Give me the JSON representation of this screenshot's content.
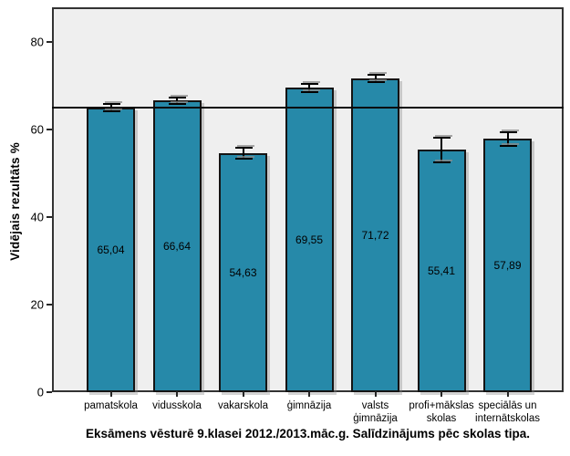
{
  "chart_data": {
    "type": "bar",
    "title": "Eksāmens vēsturē 9.klasei 2012./2013.māc.g. Salīdzinājums pēc skolas tipa.",
    "ylabel": "Vidējais rezultāts %",
    "xlabel": "",
    "categories": [
      "pamatskola",
      "vidusskola",
      "vakarskola",
      "ģimnāzija",
      "valsts\nģimnāzija",
      "profi+mākslas\nskolas",
      "speciālās un\ninternātskolas"
    ],
    "values": [
      65.04,
      66.64,
      54.63,
      69.55,
      71.72,
      55.41,
      57.89
    ],
    "value_labels": [
      "65,04",
      "66,64",
      "54,63",
      "69,55",
      "71,72",
      "55,41",
      "57,89"
    ],
    "errors": [
      0.8,
      0.7,
      1.3,
      1.0,
      0.8,
      2.8,
      1.5
    ],
    "yticks": [
      0,
      20,
      40,
      60,
      80
    ],
    "ylim": [
      0,
      88
    ],
    "reference_line": 65,
    "grid": false,
    "legend": null,
    "bar_color": "#2689A9",
    "bar_border": "#141414",
    "plot_bg": "#EFEFEF",
    "outer_bg": "#FFFFFF"
  }
}
